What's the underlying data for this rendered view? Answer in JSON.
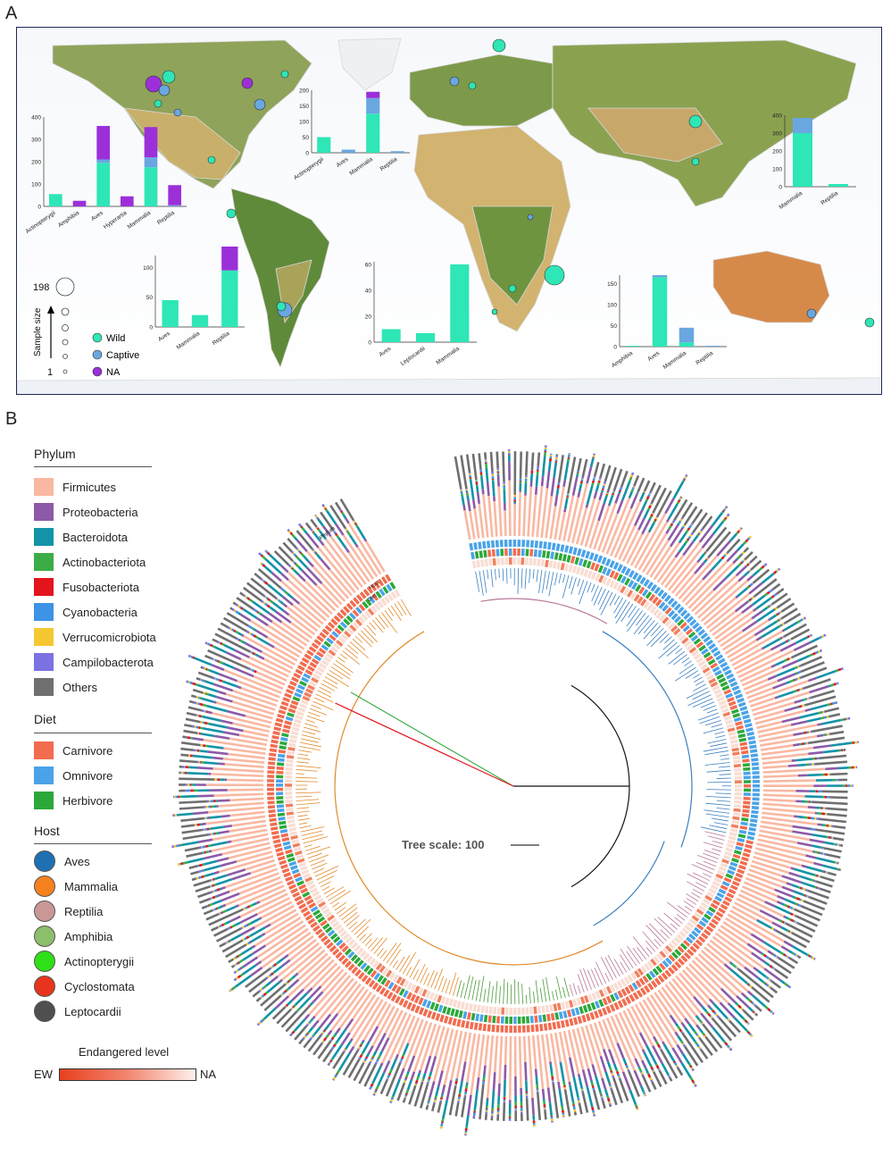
{
  "panels": {
    "a": "A",
    "b": "B"
  },
  "map": {
    "sample_size_label": "Sample size",
    "size_max": "198",
    "size_min": "1",
    "status": [
      {
        "label": "Wild",
        "color": "#2ee6b6"
      },
      {
        "label": "Captive",
        "color": "#6aa7e0"
      },
      {
        "label": "NA",
        "color": "#9b30d9"
      }
    ],
    "insets": [
      {
        "id": "north-america",
        "yticks": [
          "0",
          "100",
          "200",
          "300",
          "400"
        ],
        "ymax": 400,
        "categories": [
          "Actinopterygii",
          "Amphibia",
          "Aves",
          "Hyperartia",
          "Mammalia",
          "Reptilia"
        ],
        "wild": [
          55,
          0,
          195,
          0,
          175,
          0
        ],
        "captive": [
          0,
          0,
          15,
          0,
          45,
          5
        ],
        "na": [
          0,
          25,
          150,
          45,
          135,
          90
        ]
      },
      {
        "id": "europe",
        "yticks": [
          "0",
          "50",
          "100",
          "150",
          "200"
        ],
        "ymax": 200,
        "categories": [
          "Actinopterygii",
          "Aves",
          "Mammalia",
          "Reptilia"
        ],
        "wild": [
          50,
          0,
          125,
          0
        ],
        "captive": [
          0,
          10,
          50,
          5
        ],
        "na": [
          0,
          0,
          20,
          0
        ]
      },
      {
        "id": "asia",
        "yticks": [
          "0",
          "100",
          "200",
          "300",
          "400"
        ],
        "ymax": 400,
        "categories": [
          "Mammalia",
          "Reptilia"
        ],
        "wild": [
          300,
          15
        ],
        "captive": [
          85,
          0
        ],
        "na": [
          0,
          0
        ]
      },
      {
        "id": "south-america",
        "yticks": [
          "0",
          "50",
          "100"
        ],
        "ymax": 120,
        "categories": [
          "Aves",
          "Mammalia",
          "Reptilia"
        ],
        "wild": [
          45,
          20,
          95
        ],
        "captive": [
          0,
          0,
          0
        ],
        "na": [
          0,
          0,
          40
        ]
      },
      {
        "id": "africa",
        "yticks": [
          "0",
          "20",
          "40",
          "60"
        ],
        "ymax": 62,
        "categories": [
          "Aves",
          "Leptocardii",
          "Mammalia"
        ],
        "wild": [
          10,
          7,
          60
        ],
        "captive": [
          0,
          0,
          0
        ],
        "na": [
          0,
          0,
          0
        ]
      },
      {
        "id": "oceania",
        "yticks": [
          "0",
          "50",
          "100",
          "150"
        ],
        "ymax": 170,
        "categories": [
          "Amphibia",
          "Aves",
          "Mammalia",
          "Reptilia"
        ],
        "wild": [
          2,
          165,
          10,
          0
        ],
        "captive": [
          0,
          5,
          35,
          2
        ],
        "na": [
          0,
          0,
          0,
          0
        ]
      }
    ]
  },
  "tree": {
    "scale_label": "Tree scale: 100",
    "ring_labels": [
      "Phylum",
      "Diet",
      "Host"
    ]
  },
  "legend": {
    "phylum": {
      "title": "Phylum",
      "items": [
        {
          "label": "Firmicutes",
          "color": "#f9b8a2"
        },
        {
          "label": "Proteobacteria",
          "color": "#8c5aa8"
        },
        {
          "label": "Bacteroidota",
          "color": "#1393a7"
        },
        {
          "label": "Actinobacteriota",
          "color": "#3cad46"
        },
        {
          "label": "Fusobacteriota",
          "color": "#e3141c"
        },
        {
          "label": "Cyanobacteria",
          "color": "#3d93e6"
        },
        {
          "label": "Verrucomicrobiota",
          "color": "#f5c832"
        },
        {
          "label": "Campilobacterota",
          "color": "#7b72e3"
        },
        {
          "label": "Others",
          "color": "#6f6f6f"
        }
      ]
    },
    "diet": {
      "title": "Diet",
      "items": [
        {
          "label": "Carnivore",
          "color": "#f26c4f"
        },
        {
          "label": "Omnivore",
          "color": "#4aa3e8"
        },
        {
          "label": "Herbivore",
          "color": "#2ca83a"
        }
      ]
    },
    "host": {
      "title": "Host",
      "items": [
        {
          "label": "Aves",
          "color": "#1f6fb3"
        },
        {
          "label": "Mammalia",
          "color": "#f5821f"
        },
        {
          "label": "Reptilia",
          "color": "#c99896"
        },
        {
          "label": "Amphibia",
          "color": "#8dbe6b"
        },
        {
          "label": "Actinopterygii",
          "color": "#2fe018"
        },
        {
          "label": "Cyclostomata",
          "color": "#e8341c"
        },
        {
          "label": "Leptocardii",
          "color": "#4f4f4f"
        }
      ]
    },
    "endangered": {
      "title": "Endangered level",
      "low": "EW",
      "high": "NA"
    }
  }
}
